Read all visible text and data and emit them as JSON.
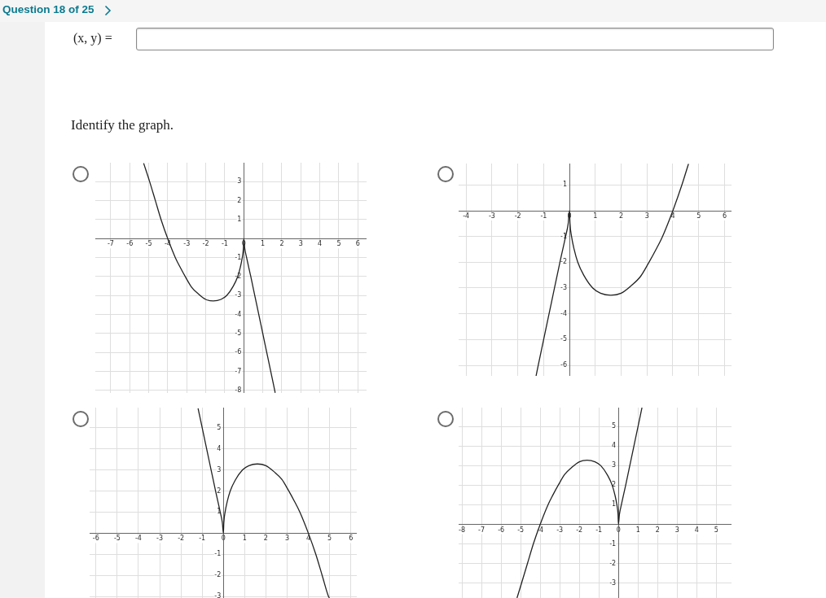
{
  "chart_data": [
    {
      "type": "other",
      "annotations": [
        "Question 18 of 25",
        "(x, y) =",
        "Identify the graph."
      ]
    },
    {
      "type": "line",
      "xlim": [
        -7.81,
        6.46
      ],
      "ylim": [
        -8.13,
        4
      ],
      "xticks": [
        -7,
        -6,
        -5,
        -4,
        -3,
        -2,
        -1,
        0,
        1,
        2,
        3,
        4,
        5,
        6
      ],
      "yticks": [
        -8,
        -7,
        -6,
        -5,
        -4,
        -3,
        -2,
        -1,
        1,
        2,
        3
      ],
      "grid": true,
      "marker": "none",
      "series": [
        {
          "color": "#222222",
          "x": [
            -5.26,
            -4.95,
            -4.65,
            -4.35,
            -4,
            -3.6,
            -3.35,
            -3.05,
            -2.75,
            -2.4,
            -2,
            -1.6,
            -1.2,
            -0.9,
            -0.55,
            -0.32,
            -0.18,
            -0.08,
            -0.02,
            0,
            0.05,
            0.15,
            0.37,
            0.58,
            0.79,
            1.0,
            1.21,
            1.42,
            1.65
          ],
          "values": [
            3.95,
            3,
            2,
            1,
            0,
            -1,
            -1.5,
            -2.05,
            -2.55,
            -2.9,
            -3.2,
            -3.28,
            -3.2,
            -3,
            -2.5,
            -2,
            -1.5,
            -1,
            -0.5,
            0,
            -0.5,
            -1,
            -2,
            -3,
            -4,
            -5,
            -6,
            -7,
            -8.1
          ]
        }
      ]
    },
    {
      "type": "line",
      "xlim": [
        -4.29,
        6.27
      ],
      "ylim": [
        -6.41,
        1.83
      ],
      "xticks": [
        -4,
        -3,
        -2,
        -1,
        0,
        1,
        2,
        3,
        4,
        5,
        6
      ],
      "yticks": [
        -6,
        -5,
        -4,
        -3,
        -2,
        -1,
        1
      ],
      "grid": true,
      "marker": "none",
      "series": [
        {
          "color": "#222222",
          "x": [
            -1.29,
            -1.21,
            -1.0,
            -0.79,
            -0.58,
            -0.37,
            -0.15,
            -0.05,
            0,
            0.02,
            0.08,
            0.18,
            0.32,
            0.55,
            0.9,
            1.2,
            1.6,
            2.0,
            2.4,
            2.75,
            3.05,
            3.35,
            3.6,
            4,
            4.35,
            4.6
          ],
          "values": [
            -6.4,
            -6,
            -5,
            -4,
            -3,
            -2,
            -1,
            -0.5,
            0,
            -0.5,
            -1,
            -1.5,
            -2,
            -2.5,
            -3,
            -3.2,
            -3.28,
            -3.2,
            -2.9,
            -2.55,
            -2.05,
            -1.5,
            -1,
            0,
            1,
            1.8
          ]
        }
      ]
    },
    {
      "type": "line",
      "xlim": [
        -6.3,
        6.28
      ],
      "ylim": [
        -3.07,
        5.95
      ],
      "xticks": [
        -6,
        -5,
        -4,
        -3,
        -2,
        -1,
        0,
        1,
        2,
        3,
        4,
        5,
        6
      ],
      "yticks": [
        -3,
        -2,
        -1,
        1,
        2,
        3,
        4,
        5
      ],
      "grid": true,
      "marker": "none",
      "series": [
        {
          "color": "#222222",
          "x": [
            -1.19,
            -1.0,
            -0.79,
            -0.58,
            -0.37,
            -0.15,
            -0.05,
            0,
            0.02,
            0.08,
            0.18,
            0.32,
            0.55,
            0.9,
            1.2,
            1.6,
            2.0,
            2.4,
            2.75,
            3.05,
            3.35,
            3.6,
            4,
            4.35,
            4.65,
            4.95,
            4.98
          ],
          "values": [
            5.9,
            5,
            4,
            3,
            2,
            1,
            0.5,
            0,
            0.5,
            1,
            1.5,
            2,
            2.5,
            3,
            3.2,
            3.28,
            3.2,
            2.9,
            2.55,
            2.05,
            1.5,
            1,
            0,
            -1,
            -2,
            -3,
            -3.05
          ]
        }
      ]
    },
    {
      "type": "line",
      "xlim": [
        -8.17,
        5.78
      ],
      "ylim": [
        -3.77,
        5.97
      ],
      "xticks": [
        -8,
        -7,
        -6,
        -5,
        -4,
        -3,
        -2,
        -1,
        0,
        1,
        2,
        3,
        4,
        5
      ],
      "yticks": [
        -3,
        -2,
        -1,
        1,
        2,
        3,
        4,
        5
      ],
      "grid": true,
      "marker": "none",
      "series": [
        {
          "color": "#222222",
          "x": [
            -5.18,
            -4.95,
            -4.65,
            -4.35,
            -4,
            -3.6,
            -3.35,
            -3.05,
            -2.75,
            -2.4,
            -2,
            -1.6,
            -1.2,
            -0.9,
            -0.55,
            -0.32,
            -0.18,
            -0.08,
            -0.02,
            0,
            0.05,
            0.15,
            0.37,
            0.58,
            0.79,
            1.0,
            1.2
          ],
          "values": [
            -3.75,
            -3,
            -2,
            -1,
            0,
            1,
            1.5,
            2.05,
            2.55,
            2.9,
            3.2,
            3.28,
            3.2,
            3,
            2.5,
            2,
            1.5,
            1,
            0.5,
            0,
            0.5,
            1,
            2,
            3,
            4,
            5,
            5.95
          ]
        }
      ]
    }
  ]
}
